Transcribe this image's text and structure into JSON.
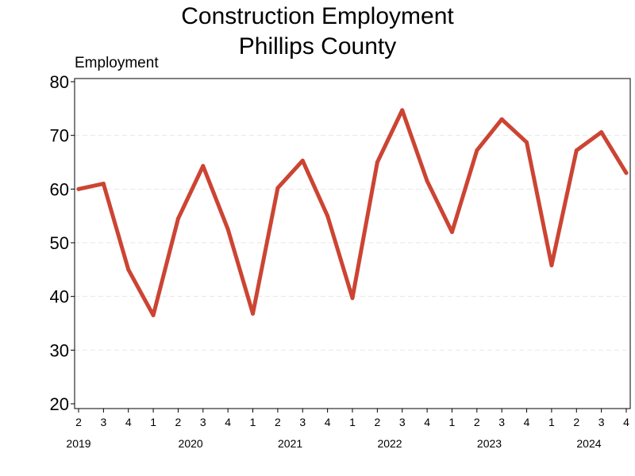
{
  "chart_data": {
    "type": "line",
    "title_line1": "Construction Employment",
    "title_line2": "Phillips County",
    "ylabel": "Employment",
    "xlabel": "",
    "ylim": [
      20,
      80
    ],
    "yticks": [
      20,
      30,
      40,
      50,
      60,
      70,
      80
    ],
    "grid": "horizontal dashed",
    "x": [
      {
        "year": "2019",
        "quarter": "2"
      },
      {
        "year": "2019",
        "quarter": "3"
      },
      {
        "year": "2019",
        "quarter": "4"
      },
      {
        "year": "2020",
        "quarter": "1"
      },
      {
        "year": "2020",
        "quarter": "2"
      },
      {
        "year": "2020",
        "quarter": "3"
      },
      {
        "year": "2020",
        "quarter": "4"
      },
      {
        "year": "2021",
        "quarter": "1"
      },
      {
        "year": "2021",
        "quarter": "2"
      },
      {
        "year": "2021",
        "quarter": "3"
      },
      {
        "year": "2021",
        "quarter": "4"
      },
      {
        "year": "2022",
        "quarter": "1"
      },
      {
        "year": "2022",
        "quarter": "2"
      },
      {
        "year": "2022",
        "quarter": "3"
      },
      {
        "year": "2022",
        "quarter": "4"
      },
      {
        "year": "2023",
        "quarter": "1"
      },
      {
        "year": "2023",
        "quarter": "2"
      },
      {
        "year": "2023",
        "quarter": "3"
      },
      {
        "year": "2023",
        "quarter": "4"
      },
      {
        "year": "2024",
        "quarter": "1"
      },
      {
        "year": "2024",
        "quarter": "2"
      },
      {
        "year": "2024",
        "quarter": "3"
      },
      {
        "year": "2024",
        "quarter": "4"
      }
    ],
    "year_labels": [
      "2019",
      "2020",
      "2021",
      "2022",
      "2023",
      "2024"
    ],
    "series": [
      {
        "values": [
          60,
          61,
          45,
          36.5,
          54.5,
          64.3,
          52.5,
          36.8,
          60.2,
          65.3,
          55,
          39.7,
          65,
          74.7,
          61.5,
          52,
          67.2,
          73,
          68.7,
          45.8,
          67.2,
          70.6,
          63
        ],
        "color": "#cc4433"
      }
    ]
  }
}
